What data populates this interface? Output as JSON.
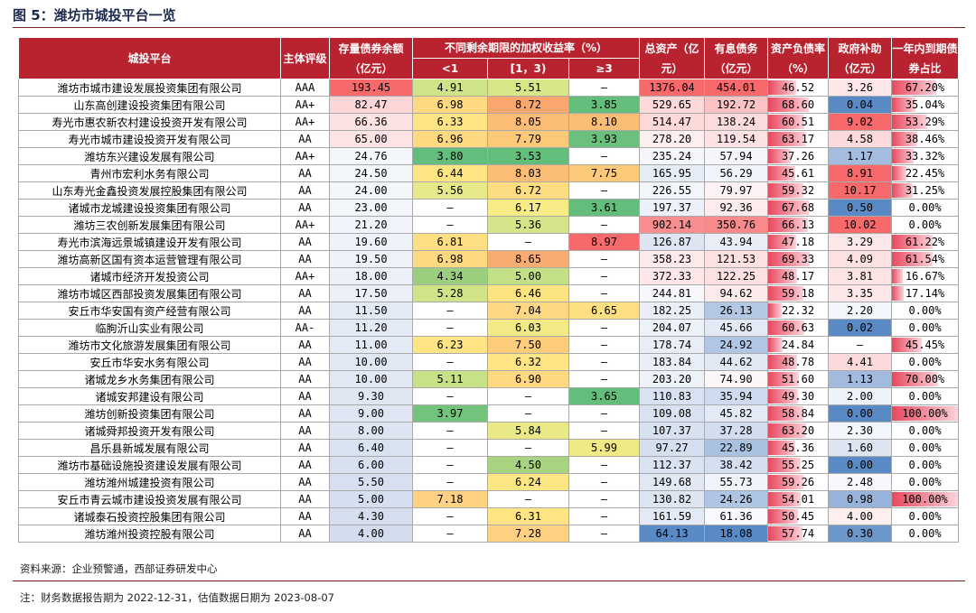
{
  "figure": {
    "title": "图 5：潍坊市城投平台一览",
    "source": "资料来源：企业预警通，西部证券研发中心",
    "note": "注：财务数据报告期为 2022-12-31，估值数据日期为 2023-08-07"
  },
  "table": {
    "headers": {
      "platform": "城投平台",
      "rating": "主体评级",
      "outstanding": "存量债券余额（亿元）",
      "yield_group": "不同剩余期限的加权收益率（%）",
      "yield_lt1": "<1",
      "yield_1_3": "[1，3)",
      "yield_ge3": "≥3",
      "total_assets": "总资产（亿元）",
      "interest_debt": "有息债务（亿元）",
      "debt_ratio": "资产负债率（%）",
      "subsidy": "政府补助（亿元）",
      "due_ratio": "一年内到期债券占比"
    },
    "colors": {
      "header": "#b8232f",
      "red": "#f8696b",
      "red_light": "#fbb3b5",
      "orange": "#f9a66f",
      "yellow": "#fee482",
      "light_green": "#cfe387",
      "green": "#9bcf7f",
      "dark_green": "#63be7b",
      "blue": "#5a8ac6",
      "blue_mid": "#a3bcdf",
      "blue_light": "#dce6f2",
      "bar": "#e8485e"
    },
    "rows": [
      {
        "name": "潍坊市城市建设发展投资集团有限公司",
        "rating": "AAA",
        "outstanding": "193.45",
        "y1": "4.91",
        "y2": "5.51",
        "y3": "–",
        "assets": "1376.04",
        "debt": "454.01",
        "ratio": "46.52",
        "subsidy": "3.26",
        "due": "67.20%",
        "c_out": "#f8696b",
        "c_y1": "#cfe387",
        "c_y2": "#d9e688",
        "c_y3": "",
        "c_assets": "#f8696b",
        "c_debt": "#f8696b",
        "c_sub": "#fde7e8"
      },
      {
        "name": "山东高创建设投资集团有限公司",
        "rating": "AA+",
        "outstanding": "82.47",
        "y1": "6.98",
        "y2": "8.72",
        "y3": "3.85",
        "assets": "529.65",
        "debt": "192.72",
        "ratio": "68.60",
        "subsidy": "0.04",
        "due": "35.04%",
        "c_out": "#fcd5d6",
        "c_y1": "#fed982",
        "c_y2": "#f9a66f",
        "c_y3": "#63be7b",
        "c_assets": "#fdd9da",
        "c_debt": "#fbc3c4",
        "c_sub": "#5a8ac6"
      },
      {
        "name": "寿光市惠农新农村建设投资开发有限公司",
        "rating": "AA+",
        "outstanding": "66.36",
        "y1": "6.33",
        "y2": "8.05",
        "y3": "8.10",
        "assets": "514.47",
        "debt": "138.24",
        "ratio": "60.51",
        "subsidy": "9.02",
        "due": "53.29%",
        "c_out": "#fde2e3",
        "c_y1": "#fee482",
        "c_y2": "#fbbc76",
        "c_y3": "#fbbc76",
        "c_assets": "#fdd9da",
        "c_debt": "#fcdbdc",
        "c_sub": "#f8696b"
      },
      {
        "name": "寿光市城市建设投资开发有限公司",
        "rating": "AA",
        "outstanding": "65.00",
        "y1": "6.96",
        "y2": "7.79",
        "y3": "3.93",
        "assets": "278.20",
        "debt": "119.54",
        "ratio": "63.17",
        "subsidy": "4.58",
        "due": "38.46%",
        "c_out": "#fde3e4",
        "c_y1": "#fed982",
        "c_y2": "#fcc87a",
        "c_y3": "#6ac07c",
        "c_assets": "#fdeef0",
        "c_debt": "#fde2e3",
        "c_sub": "#fcd9da"
      },
      {
        "name": "潍坊东兴建设发展有限公司",
        "rating": "AA+",
        "outstanding": "24.76",
        "y1": "3.80",
        "y2": "3.53",
        "y3": "–",
        "assets": "235.24",
        "debt": "57.94",
        "ratio": "37.26",
        "subsidy": "1.17",
        "due": "33.32%",
        "c_out": "#f3f6fb",
        "c_y1": "#63be7b",
        "c_y2": "#63be7b",
        "c_y3": "",
        "c_assets": "#f4f6fb",
        "c_debt": "#f4f6fb",
        "c_sub": "#a3bcdf"
      },
      {
        "name": "青州市宏利水务有限公司",
        "rating": "AA",
        "outstanding": "24.50",
        "y1": "6.44",
        "y2": "8.03",
        "y3": "7.75",
        "assets": "165.95",
        "debt": "56.29",
        "ratio": "45.61",
        "subsidy": "8.91",
        "due": "22.45%",
        "c_out": "#f3f6fb",
        "c_y1": "#fee482",
        "c_y2": "#fbbc76",
        "c_y3": "#fcc87a",
        "c_assets": "#e6ecf6",
        "c_debt": "#f1f4fa",
        "c_sub": "#f8696b"
      },
      {
        "name": "山东寿光金鑫投资发展控股集团有限公司",
        "rating": "AA",
        "outstanding": "24.00",
        "y1": "5.56",
        "y2": "6.72",
        "y3": "–",
        "assets": "226.55",
        "debt": "79.97",
        "ratio": "59.32",
        "subsidy": "10.17",
        "due": "31.25%",
        "c_out": "#f3f6fb",
        "c_y1": "#e6e88a",
        "c_y2": "#fedd82",
        "c_y3": "",
        "c_assets": "#f2f5fa",
        "c_debt": "#fdf2f3",
        "c_sub": "#f8696b"
      },
      {
        "name": "诸城市龙城建设投资集团有限公司",
        "rating": "AA",
        "outstanding": "23.00",
        "y1": "–",
        "y2": "6.17",
        "y3": "3.61",
        "assets": "197.37",
        "debt": "92.36",
        "ratio": "67.68",
        "subsidy": "0.50",
        "due": "0.00%",
        "c_out": "#f2f5fa",
        "c_y1": "",
        "c_y2": "#f7ec86",
        "c_y3": "#63be7b",
        "c_assets": "#ecf0f8",
        "c_debt": "#fdeced",
        "c_sub": "#5a8ac6"
      },
      {
        "name": "潍坊三农创新发展集团有限公司",
        "rating": "AA+",
        "outstanding": "21.20",
        "y1": "–",
        "y2": "5.36",
        "y3": "–",
        "assets": "902.14",
        "debt": "350.76",
        "ratio": "66.13",
        "subsidy": "10.02",
        "due": "0.00%",
        "c_out": "#f1f4fa",
        "c_y1": "",
        "c_y2": "#d4e488",
        "c_y3": "",
        "c_assets": "#f98e90",
        "c_debt": "#f98a8c",
        "c_sub": "#f8696b"
      },
      {
        "name": "寿光市滨海远景城镇建设开发有限公司",
        "rating": "AA",
        "outstanding": "19.60",
        "y1": "6.81",
        "y2": "–",
        "y3": "8.97",
        "assets": "126.87",
        "debt": "43.94",
        "ratio": "47.18",
        "subsidy": "3.29",
        "due": "61.22%",
        "c_out": "#eef2f9",
        "c_y1": "#fede82",
        "c_y2": "",
        "c_y3": "#f8696b",
        "c_assets": "#dde5f2",
        "c_debt": "#e8edf6",
        "c_sub": "#fde7e8"
      },
      {
        "name": "潍坊高新区国有资本运营管理有限公司",
        "rating": "AA",
        "outstanding": "19.50",
        "y1": "6.98",
        "y2": "8.65",
        "y3": "–",
        "assets": "358.23",
        "debt": "121.53",
        "ratio": "69.33",
        "subsidy": "4.09",
        "due": "61.54%",
        "c_out": "#eef2f9",
        "c_y1": "#fed982",
        "c_y2": "#f9ac71",
        "c_y3": "",
        "c_assets": "#fdeaeb",
        "c_debt": "#fde1e2",
        "c_sub": "#fde0e1"
      },
      {
        "name": "诸城市经济开发投资公司",
        "rating": "AA+",
        "outstanding": "18.00",
        "y1": "4.34",
        "y2": "5.00",
        "y3": "–",
        "assets": "372.33",
        "debt": "122.25",
        "ratio": "48.17",
        "subsidy": "3.81",
        "due": "16.67%",
        "c_out": "#ecf0f8",
        "c_y1": "#9bcf7f",
        "c_y2": "#c2e085",
        "c_y3": "",
        "c_assets": "#fde7e8",
        "c_debt": "#fde1e2",
        "c_sub": "#fde3e4"
      },
      {
        "name": "潍坊市城区西部投资发展集团有限公司",
        "rating": "AA",
        "outstanding": "17.50",
        "y1": "5.28",
        "y2": "6.46",
        "y3": "–",
        "assets": "244.81",
        "debt": "94.62",
        "ratio": "59.18",
        "subsidy": "3.35",
        "due": "17.14%",
        "c_out": "#ebeff8",
        "c_y1": "#d1e387",
        "c_y2": "#fde482",
        "c_y3": "",
        "c_assets": "#f6f8fc",
        "c_debt": "#fdebec",
        "c_sub": "#fde7e8"
      },
      {
        "name": "安丘市华安国有资产经营有限公司",
        "rating": "AA",
        "outstanding": "11.50",
        "y1": "–",
        "y2": "7.04",
        "y3": "6.65",
        "assets": "182.25",
        "debt": "26.13",
        "ratio": "22.32",
        "subsidy": "2.20",
        "due": "0.00%",
        "c_out": "#e4eaf5",
        "c_y1": "",
        "c_y2": "#fed782",
        "c_y3": "#fee082",
        "c_assets": "#e9eef7",
        "c_debt": "#b3c8e5",
        "c_sub": "#f3f6fb"
      },
      {
        "name": "临朐沂山实业有限公司",
        "rating": "AA-",
        "outstanding": "11.20",
        "y1": "–",
        "y2": "6.03",
        "y3": "–",
        "assets": "204.07",
        "debt": "45.66",
        "ratio": "60.63",
        "subsidy": "0.02",
        "due": "0.00%",
        "c_out": "#e3e9f5",
        "c_y1": "",
        "c_y2": "#f1ea85",
        "c_y3": "",
        "c_assets": "#edf1f8",
        "c_debt": "#e4eaf5",
        "c_sub": "#5a8ac6"
      },
      {
        "name": "潍坊市文化旅游发展集团有限公司",
        "rating": "AA",
        "outstanding": "11.00",
        "y1": "6.23",
        "y2": "7.50",
        "y3": "–",
        "assets": "178.74",
        "debt": "24.92",
        "ratio": "24.84",
        "subsidy": "–",
        "due": "45.45%",
        "c_out": "#e3e9f5",
        "c_y1": "#fee482",
        "c_y2": "#fdcd7c",
        "c_y3": "",
        "c_assets": "#e8edf6",
        "c_debt": "#b0c6e4",
        "c_sub": ""
      },
      {
        "name": "安丘市华安水务有限公司",
        "rating": "AA",
        "outstanding": "10.00",
        "y1": "–",
        "y2": "6.32",
        "y3": "–",
        "assets": "183.84",
        "debt": "44.62",
        "ratio": "48.78",
        "subsidy": "4.41",
        "due": "0.00%",
        "c_out": "#e1e8f4",
        "c_y1": "",
        "c_y2": "#fee482",
        "c_y3": "",
        "c_assets": "#e9eef7",
        "c_debt": "#e2e9f5",
        "c_sub": "#fcd9da"
      },
      {
        "name": "诸城龙乡水务集团有限公司",
        "rating": "AA",
        "outstanding": "10.00",
        "y1": "5.11",
        "y2": "6.90",
        "y3": "–",
        "assets": "203.20",
        "debt": "74.90",
        "ratio": "51.60",
        "subsidy": "1.13",
        "due": "70.00%",
        "c_out": "#e1e8f4",
        "c_y1": "#c7e186",
        "c_y2": "#fed982",
        "c_y3": "",
        "c_assets": "#edf1f8",
        "c_debt": "#fdf6f6",
        "c_sub": "#a1bade"
      },
      {
        "name": "诸城安邦建设有限公司",
        "rating": "AA",
        "outstanding": "9.30",
        "y1": "–",
        "y2": "–",
        "y3": "3.65",
        "assets": "110.83",
        "debt": "35.94",
        "ratio": "49.30",
        "subsidy": "2.00",
        "due": "0.00%",
        "c_out": "#e0e7f3",
        "c_y1": "",
        "c_y2": "",
        "c_y3": "#63be7b",
        "c_assets": "#d9e2f1",
        "c_debt": "#cfdbee",
        "c_sub": "#eef2f9"
      },
      {
        "name": "潍坊创新投资集团有限公司",
        "rating": "AA",
        "outstanding": "9.00",
        "y1": "3.97",
        "y2": "–",
        "y3": "–",
        "assets": "109.08",
        "debt": "45.82",
        "ratio": "58.84",
        "subsidy": "0.00",
        "due": "100.00%",
        "c_out": "#dfe6f3",
        "c_y1": "#72c37c",
        "c_y2": "",
        "c_y3": "",
        "c_assets": "#d9e2f1",
        "c_debt": "#e4eaf5",
        "c_sub": "#5a8ac6"
      },
      {
        "name": "诸城舜邦投资开发有限公司",
        "rating": "AA",
        "outstanding": "8.00",
        "y1": "–",
        "y2": "5.84",
        "y3": "–",
        "assets": "107.37",
        "debt": "37.28",
        "ratio": "63.20",
        "subsidy": "2.30",
        "due": "0.00%",
        "c_out": "#dde5f2",
        "c_y1": "",
        "c_y2": "#e9e987",
        "c_y3": "",
        "c_assets": "#d8e1f0",
        "c_debt": "#d2ddef",
        "c_sub": "#f3f6fb"
      },
      {
        "name": "昌乐县新城发展有限公司",
        "rating": "AA",
        "outstanding": "6.40",
        "y1": "–",
        "y2": "–",
        "y3": "5.99",
        "assets": "97.27",
        "debt": "22.89",
        "ratio": "45.36",
        "subsidy": "1.60",
        "due": "0.00%",
        "c_out": "#d9e2f1",
        "c_y1": "",
        "c_y2": "",
        "c_y3": "#f0ea85",
        "c_assets": "#d5dfef",
        "c_debt": "#aac2e2",
        "c_sub": "#dde5f2"
      },
      {
        "name": "潍坊市基础设施投资建设发展有限公司",
        "rating": "AA",
        "outstanding": "6.00",
        "y1": "–",
        "y2": "4.50",
        "y3": "–",
        "assets": "112.37",
        "debt": "38.42",
        "ratio": "55.25",
        "subsidy": "0.00",
        "due": "0.00%",
        "c_out": "#d8e1f0",
        "c_y1": "",
        "c_y2": "#a8d481",
        "c_y3": "",
        "c_assets": "#d9e2f1",
        "c_debt": "#d5dfef",
        "c_sub": "#5a8ac6"
      },
      {
        "name": "潍坊潍州城建投资有限公司",
        "rating": "AA",
        "outstanding": "5.50",
        "y1": "–",
        "y2": "6.24",
        "y3": "–",
        "assets": "149.68",
        "debt": "55.73",
        "ratio": "59.26",
        "subsidy": "2.48",
        "due": "0.00%",
        "c_out": "#d7e0f0",
        "c_y1": "",
        "c_y2": "#fbe683",
        "c_y3": "",
        "c_assets": "#e1e8f4",
        "c_debt": "#f1f4fa",
        "c_sub": "#f6f8fc"
      },
      {
        "name": "安丘市青云城市建设投资发展有限公司",
        "rating": "AA",
        "outstanding": "5.00",
        "y1": "7.18",
        "y2": "–",
        "y3": "–",
        "assets": "130.82",
        "debt": "24.26",
        "ratio": "54.01",
        "subsidy": "0.98",
        "due": "100.00%",
        "c_out": "#d6dff0",
        "c_y1": "#fed282",
        "c_y2": "",
        "c_y3": "",
        "c_assets": "#dde5f2",
        "c_debt": "#afc5e4",
        "c_sub": "#98b3db"
      },
      {
        "name": "诸城泰石投资控股集团有限公司",
        "rating": "AA",
        "outstanding": "4.30",
        "y1": "–",
        "y2": "6.31",
        "y3": "–",
        "assets": "161.59",
        "debt": "61.36",
        "ratio": "50.45",
        "subsidy": "4.00",
        "due": "0.00%",
        "c_out": "#d5deef",
        "c_y1": "",
        "c_y2": "#fee482",
        "c_y3": "",
        "c_assets": "#e4eaf5",
        "c_debt": "#f8f9fc",
        "c_sub": "#fdeff0"
      },
      {
        "name": "潍坊潍州投资控股有限公司",
        "rating": "AA",
        "outstanding": "4.00",
        "y1": "–",
        "y2": "7.28",
        "y3": "–",
        "assets": "64.13",
        "debt": "18.08",
        "ratio": "57.74",
        "subsidy": "0.30",
        "due": "0.00%",
        "c_out": "#d4ddee",
        "c_y1": "",
        "c_y2": "#fed182",
        "c_y3": "",
        "c_assets": "#5a8ac6",
        "c_debt": "#5a8ac6",
        "c_sub": "#6c97cb"
      }
    ]
  }
}
